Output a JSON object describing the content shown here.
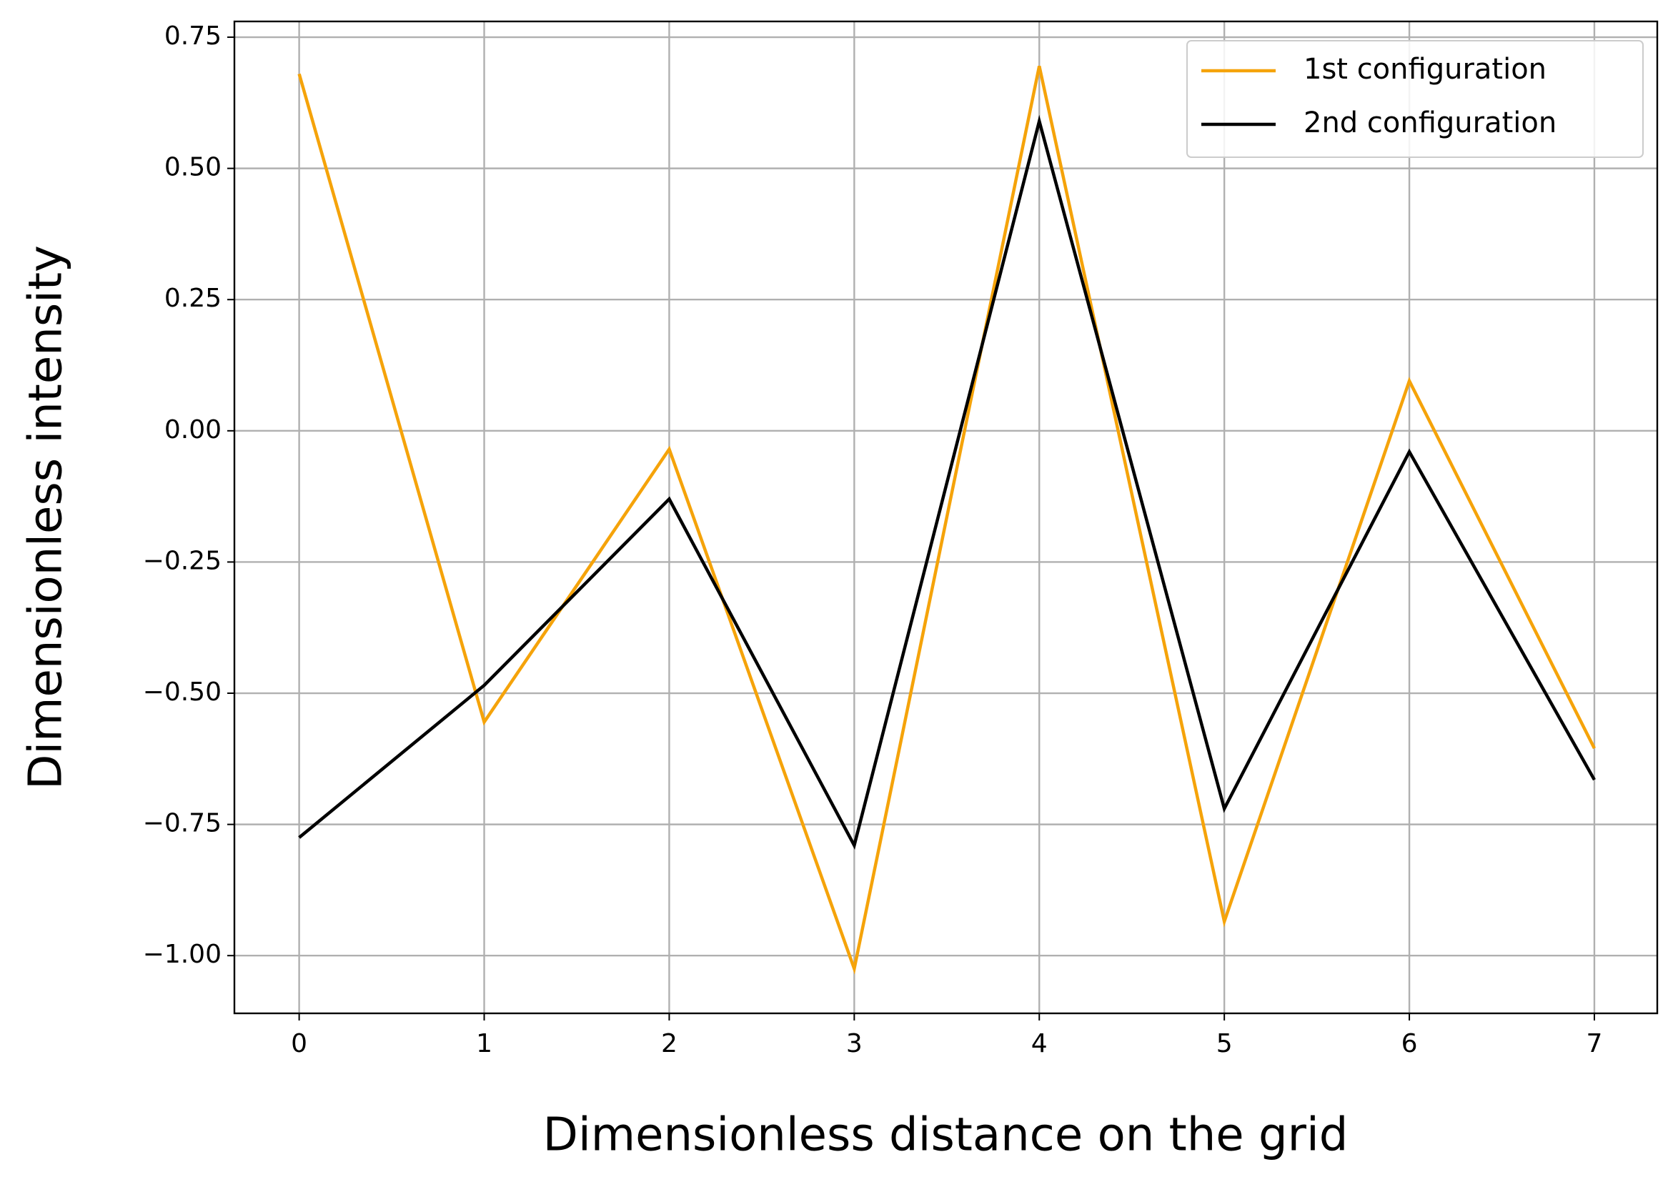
{
  "chart_data": {
    "type": "line",
    "x_label": "Dimensionless distance on the grid",
    "y_label": "Dimensionless intensity",
    "x": [
      0,
      1,
      2,
      3,
      4,
      5,
      6,
      7
    ],
    "series": [
      {
        "name": "1st configuration",
        "color": "#f5a30a",
        "values": [
          0.68,
          -0.555,
          -0.035,
          -1.025,
          0.695,
          -0.935,
          0.095,
          -0.605
        ]
      },
      {
        "name": "2nd configuration",
        "color": "#000000",
        "values": [
          -0.775,
          -0.485,
          -0.13,
          -0.79,
          0.59,
          -0.72,
          -0.04,
          -0.665
        ]
      }
    ],
    "xlim": [
      -0.35,
      7.34
    ],
    "ylim": [
      -1.11,
      0.78
    ],
    "xticks": [
      0,
      1,
      2,
      3,
      4,
      5,
      6,
      7
    ],
    "yticks": [
      0.75,
      {
        "value": 0.5,
        "label": "0.50"
      },
      0.25,
      {
        "value": 0,
        "label": "0.00"
      },
      {
        "value": -0.25,
        "label": "−0.25"
      },
      {
        "value": -0.5,
        "label": "−0.50"
      },
      {
        "value": -0.75,
        "label": "−0.75"
      },
      {
        "value": -1,
        "label": "−1.00"
      }
    ],
    "grid": true,
    "legend": "upper right"
  }
}
